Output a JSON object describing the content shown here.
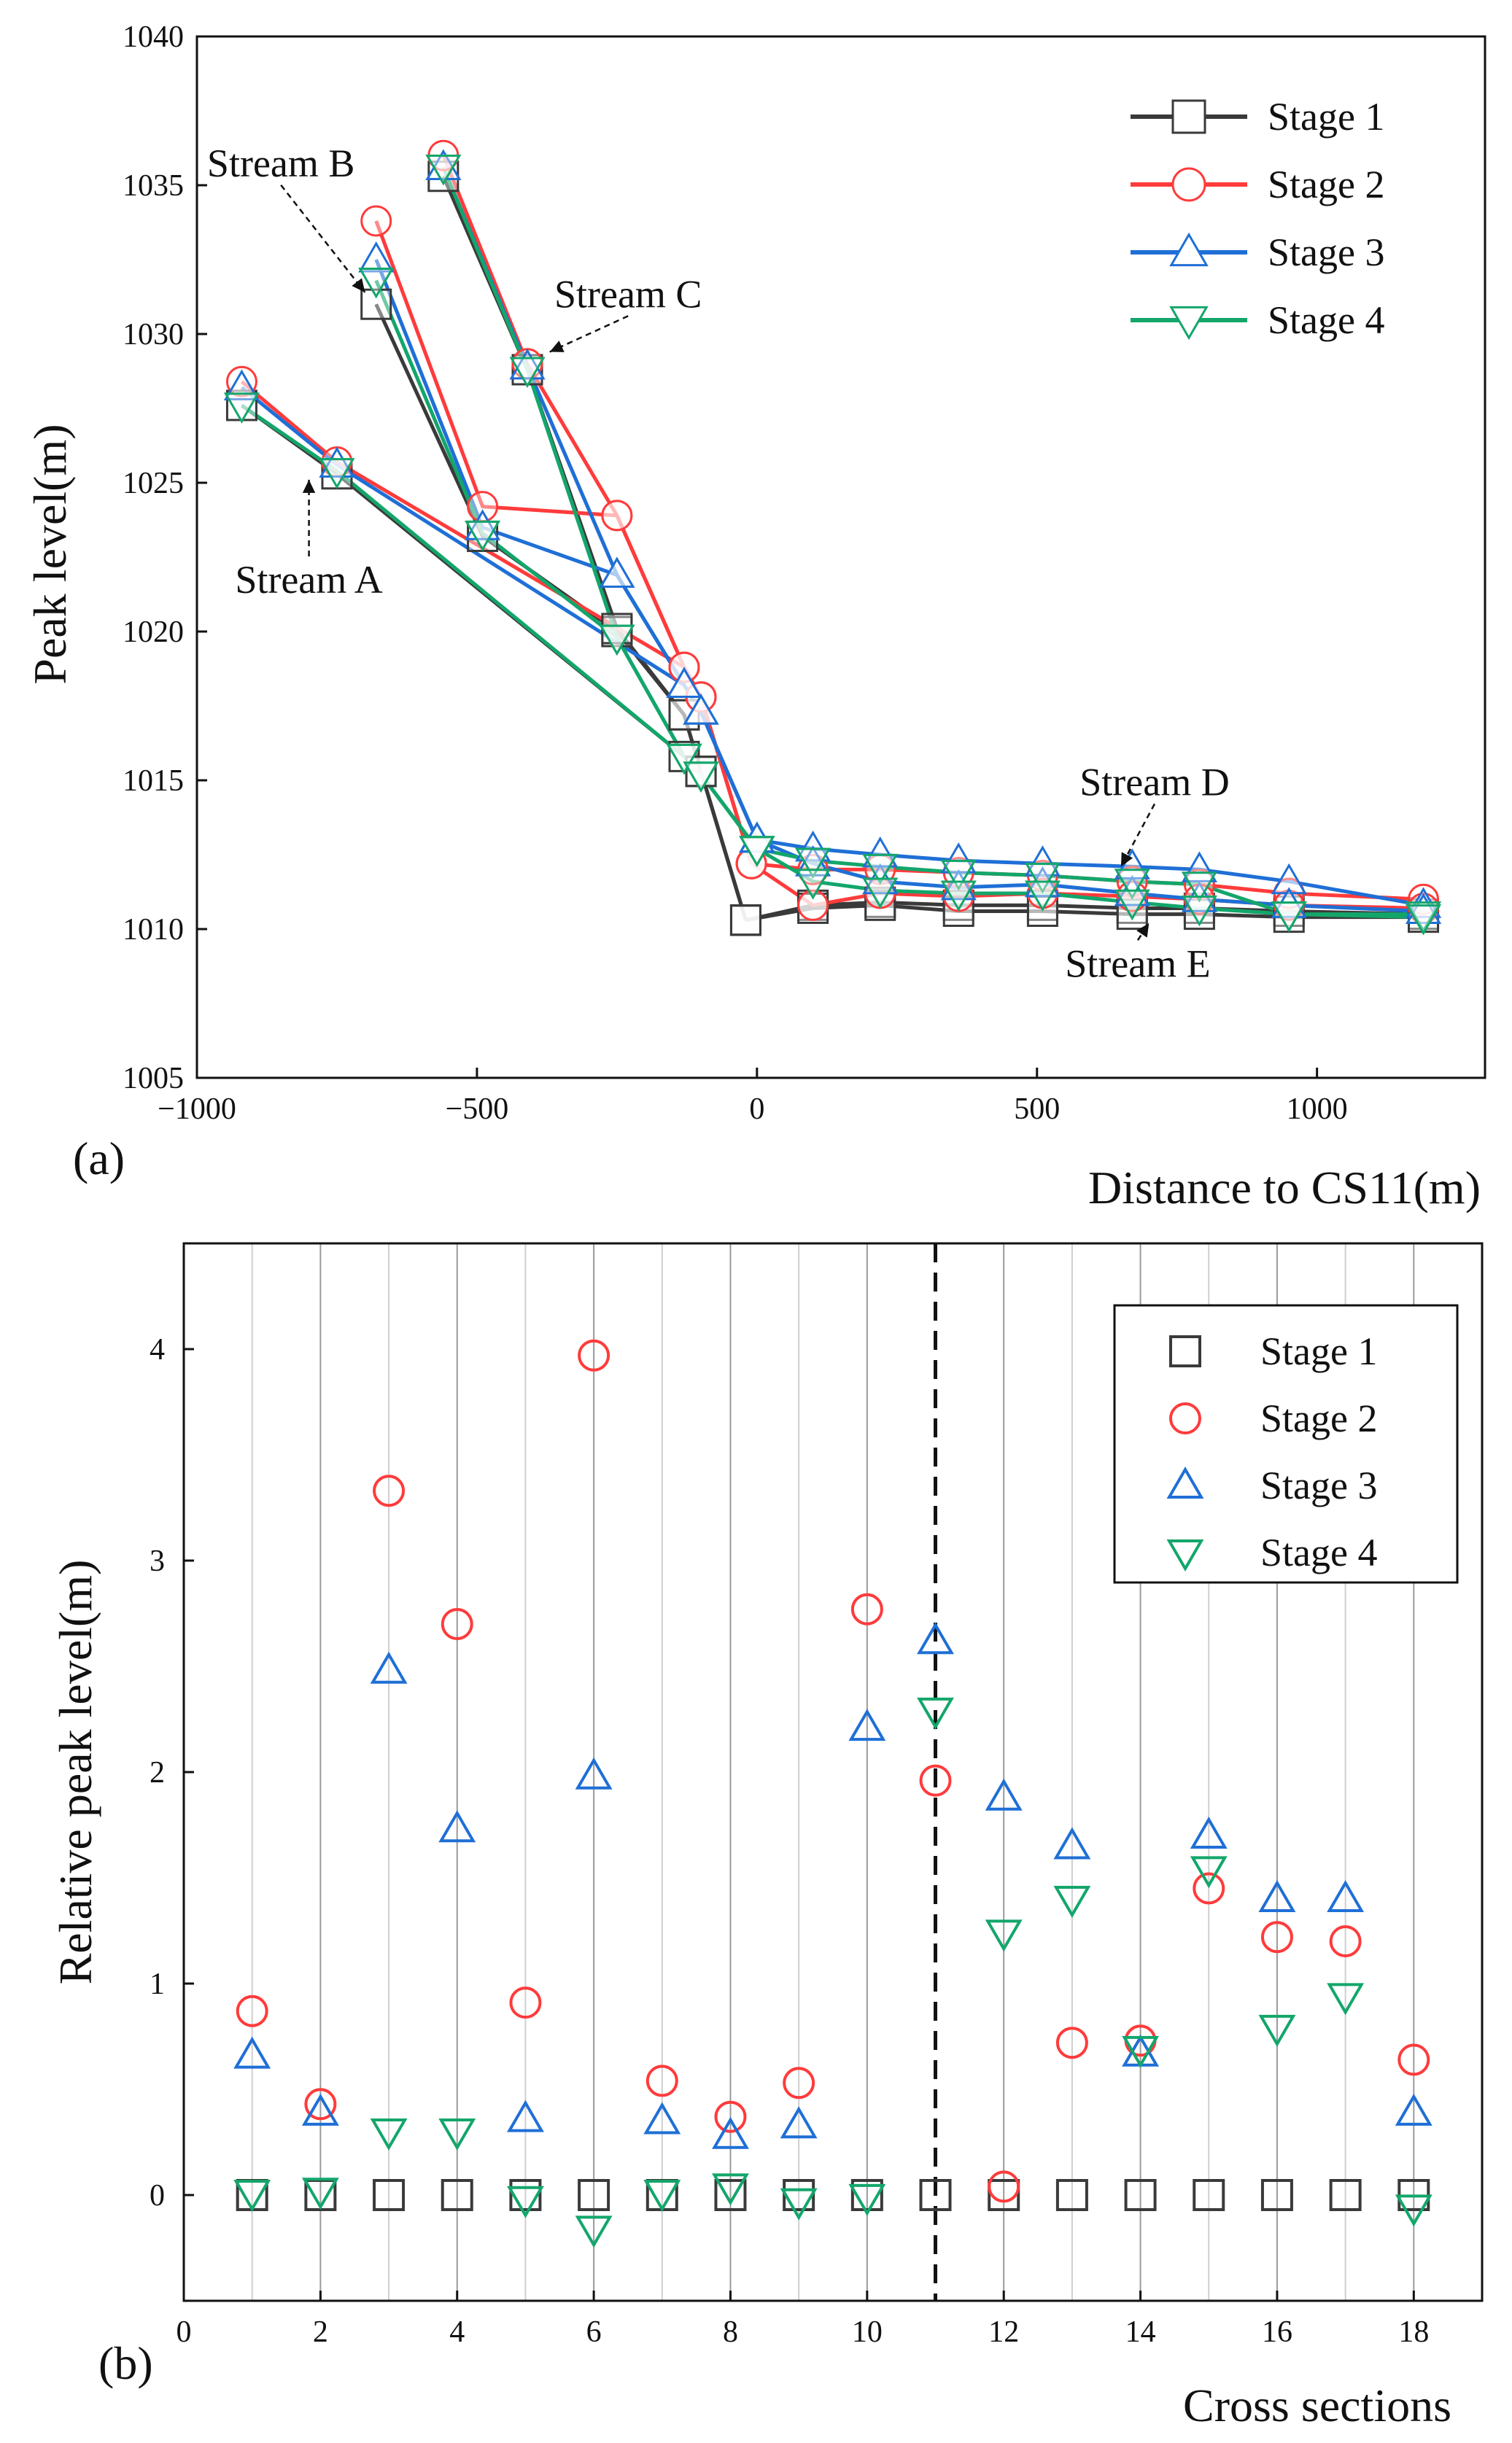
{
  "chart_data": [
    {
      "type": "line",
      "panel_label": "(a)",
      "xlabel": "Distance to CS11(m)",
      "ylabel": "Peak level(m)",
      "xlim": [
        -1000,
        1300
      ],
      "ylim": [
        1005,
        1040
      ],
      "xticks": [
        -1000,
        -500,
        0,
        500,
        1000
      ],
      "xtick_labels": [
        "−1000",
        "−500",
        "0",
        "500",
        "1000"
      ],
      "yticks": [
        1005,
        1010,
        1015,
        1020,
        1025,
        1030,
        1035,
        1040
      ],
      "ytick_labels": [
        "1005",
        "1010",
        "1015",
        "1020",
        "1025",
        "1030",
        "1035",
        "1040"
      ],
      "legend_position": "top-right",
      "series": [
        {
          "name": "Stage 1",
          "color": "#3a3a3a",
          "marker": "square",
          "streams": [
            {
              "stream": "A",
              "x": [
                -920,
                -750,
                -130,
                -100,
                -20
              ],
              "y": [
                1027.6,
                1025.3,
                1015.8,
                1015.3,
                1010.3
              ]
            },
            {
              "stream": "B",
              "x": [
                -680,
                -490,
                -250,
                -130,
                -100,
                -20
              ],
              "y": [
                1031.0,
                1023.2,
                1020.0,
                1017.2,
                1015.3,
                1010.3
              ]
            },
            {
              "stream": "C",
              "x": [
                -560,
                -410,
                -250,
                -130,
                -100,
                -20
              ],
              "y": [
                1035.3,
                1028.8,
                1020.1,
                1017.2,
                1015.3,
                1010.3
              ]
            },
            {
              "stream": "D",
              "x": [
                -20,
                100,
                220,
                360,
                510,
                670,
                790,
                950,
                1190
              ],
              "y": [
                1010.3,
                1010.8,
                1010.9,
                1010.8,
                1010.8,
                1010.7,
                1010.7,
                1010.6,
                1010.5
              ]
            },
            {
              "stream": "E",
              "x": [
                -20,
                100,
                220,
                360,
                510,
                670,
                790,
                950,
                1190
              ],
              "y": [
                1010.3,
                1010.7,
                1010.8,
                1010.6,
                1010.6,
                1010.5,
                1010.5,
                1010.4,
                1010.4
              ]
            }
          ]
        },
        {
          "name": "Stage 2",
          "color": "#ff3b3b",
          "marker": "circle",
          "streams": [
            {
              "stream": "A",
              "x": [
                -920,
                -750,
                -130,
                -100,
                -10
              ],
              "y": [
                1028.4,
                1025.7,
                1018.8,
                1017.8,
                1012.2
              ]
            },
            {
              "stream": "B",
              "x": [
                -680,
                -490,
                -250,
                -130,
                -100,
                -10
              ],
              "y": [
                1033.8,
                1024.2,
                1023.9,
                1018.8,
                1017.8,
                1012.2
              ]
            },
            {
              "stream": "C",
              "x": [
                -560,
                -410,
                -250,
                -130,
                -100,
                -10
              ],
              "y": [
                1036.0,
                1029.0,
                1023.9,
                1018.8,
                1017.8,
                1012.2
              ]
            },
            {
              "stream": "D",
              "x": [
                -10,
                100,
                220,
                360,
                510,
                670,
                790,
                950,
                1190
              ],
              "y": [
                1012.2,
                1012.0,
                1012.0,
                1011.9,
                1011.8,
                1011.6,
                1011.5,
                1011.2,
                1011.0
              ]
            },
            {
              "stream": "E",
              "x": [
                -10,
                100,
                220,
                360,
                510,
                670,
                790,
                950,
                1190
              ],
              "y": [
                1012.2,
                1010.8,
                1011.2,
                1011.1,
                1011.2,
                1011.1,
                1011.0,
                1010.8,
                1010.7
              ]
            }
          ]
        },
        {
          "name": "Stage 3",
          "color": "#1f6fd6",
          "marker": "triangle-up",
          "streams": [
            {
              "stream": "A",
              "x": [
                -920,
                -750,
                -130,
                -100,
                0
              ],
              "y": [
                1028.2,
                1025.6,
                1018.2,
                1017.3,
                1013.0
              ]
            },
            {
              "stream": "B",
              "x": [
                -680,
                -490,
                -250,
                -130,
                -100,
                0
              ],
              "y": [
                1032.5,
                1023.5,
                1021.9,
                1018.2,
                1017.3,
                1013.0
              ]
            },
            {
              "stream": "C",
              "x": [
                -560,
                -410,
                -250,
                -130,
                -100,
                0
              ],
              "y": [
                1035.6,
                1028.9,
                1021.9,
                1018.2,
                1017.3,
                1013.0
              ]
            },
            {
              "stream": "D",
              "x": [
                0,
                100,
                220,
                360,
                510,
                670,
                790,
                950,
                1190
              ],
              "y": [
                1013.0,
                1012.7,
                1012.5,
                1012.3,
                1012.2,
                1012.1,
                1012.0,
                1011.6,
                1010.8
              ]
            },
            {
              "stream": "E",
              "x": [
                0,
                100,
                220,
                360,
                510,
                670,
                790,
                950,
                1190
              ],
              "y": [
                1013.0,
                1012.2,
                1011.6,
                1011.4,
                1011.5,
                1011.2,
                1011.0,
                1010.8,
                1010.6
              ]
            }
          ]
        },
        {
          "name": "Stage 4",
          "color": "#13a66b",
          "marker": "triangle-down",
          "streams": [
            {
              "stream": "A",
              "x": [
                -920,
                -750,
                -130,
                -100,
                0
              ],
              "y": [
                1027.6,
                1025.4,
                1015.8,
                1015.2,
                1012.7
              ]
            },
            {
              "stream": "B",
              "x": [
                -680,
                -490,
                -250,
                -130,
                -100,
                0
              ],
              "y": [
                1031.8,
                1023.3,
                1019.8,
                1015.8,
                1015.2,
                1012.7
              ]
            },
            {
              "stream": "C",
              "x": [
                -560,
                -410,
                -250,
                -130,
                -100,
                0
              ],
              "y": [
                1035.6,
                1028.8,
                1019.8,
                1015.8,
                1015.2,
                1012.7
              ]
            },
            {
              "stream": "D",
              "x": [
                0,
                100,
                220,
                360,
                510,
                670,
                790,
                950,
                1190
              ],
              "y": [
                1012.7,
                1012.3,
                1012.1,
                1011.9,
                1011.8,
                1011.6,
                1011.5,
                1010.5,
                1010.5
              ]
            },
            {
              "stream": "E",
              "x": [
                0,
                100,
                220,
                360,
                510,
                670,
                790,
                950,
                1190
              ],
              "y": [
                1012.7,
                1011.6,
                1011.3,
                1011.2,
                1011.2,
                1010.9,
                1010.7,
                1010.5,
                1010.4
              ]
            }
          ]
        }
      ],
      "annotations": [
        {
          "text": "Stream A",
          "x": -800,
          "y": 1021.3,
          "arrow_to": [
            -800,
            1025.1
          ]
        },
        {
          "text": "Stream B",
          "x": -850,
          "y": 1035.3,
          "arrow_to": [
            -700,
            1031.4
          ]
        },
        {
          "text": "Stream C",
          "x": -230,
          "y": 1030.9,
          "arrow_to": [
            -370,
            1029.4
          ]
        },
        {
          "text": "Stream D",
          "x": 710,
          "y": 1014.5,
          "arrow_to": [
            650,
            1012.1
          ]
        },
        {
          "text": "Stream E",
          "x": 680,
          "y": 1008.4,
          "arrow_to": [
            700,
            1010.2
          ]
        }
      ]
    },
    {
      "type": "scatter",
      "panel_label": "(b)",
      "xlabel": "Cross sections",
      "ylabel": "Relative peak level(m)",
      "xlim": [
        0,
        19
      ],
      "ylim": [
        -0.5,
        4.5
      ],
      "xticks": [
        0,
        2,
        4,
        6,
        8,
        10,
        12,
        14,
        16,
        18
      ],
      "xtick_labels": [
        "0",
        "2",
        "4",
        "6",
        "8",
        "10",
        "12",
        "14",
        "16",
        "18"
      ],
      "yticks": [
        0,
        1,
        2,
        3,
        4
      ],
      "ytick_labels": [
        "0",
        "1",
        "2",
        "3",
        "4"
      ],
      "vertical_gridlines_at": [
        1,
        2,
        3,
        4,
        5,
        6,
        7,
        8,
        9,
        10,
        11,
        12,
        13,
        14,
        15,
        16,
        17,
        18
      ],
      "dashed_line_at": 11,
      "legend_position": "top-right",
      "x": [
        1,
        2,
        3,
        4,
        5,
        6,
        7,
        8,
        9,
        10,
        11,
        12,
        13,
        14,
        15,
        16,
        17,
        18
      ],
      "series": [
        {
          "name": "Stage 1",
          "color": "#3a3a3a",
          "marker": "square",
          "values": [
            0,
            0,
            0,
            0,
            0,
            0,
            0,
            0,
            0,
            0,
            0,
            0,
            0,
            0,
            0,
            0,
            0,
            0
          ]
        },
        {
          "name": "Stage 2",
          "color": "#ff3b3b",
          "marker": "circle",
          "values": [
            0.87,
            0.43,
            3.33,
            2.7,
            0.91,
            3.97,
            0.54,
            0.37,
            0.53,
            2.77,
            1.96,
            0.04,
            0.72,
            0.73,
            1.45,
            1.22,
            1.2,
            0.64
          ]
        },
        {
          "name": "Stage 3",
          "color": "#1f6fd6",
          "marker": "triangle-up",
          "values": [
            0.66,
            0.39,
            2.48,
            1.73,
            0.36,
            1.98,
            0.35,
            0.28,
            0.33,
            2.21,
            2.62,
            1.88,
            1.65,
            0.67,
            1.7,
            1.4,
            1.4,
            0.39
          ]
        },
        {
          "name": "Stage 4",
          "color": "#13a66b",
          "marker": "triangle-down",
          "values": [
            0.01,
            0.02,
            0.3,
            0.3,
            -0.02,
            -0.16,
            0.01,
            0.04,
            -0.03,
            -0.01,
            2.29,
            1.24,
            1.4,
            0.69,
            1.54,
            0.79,
            0.94,
            -0.06
          ]
        }
      ]
    }
  ]
}
